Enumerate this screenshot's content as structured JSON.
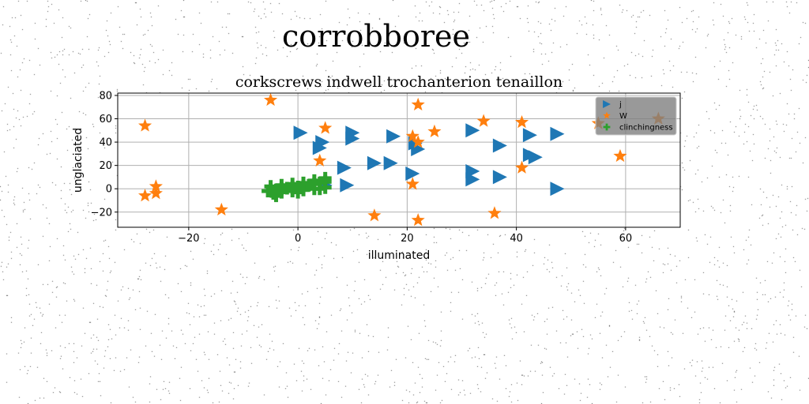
{
  "figure": {
    "suptitle": "corrobboree"
  },
  "chart_data": {
    "type": "scatter",
    "title": "corkscrews indwell trochanterion tenaillon",
    "xlabel": "illuminated",
    "ylabel": "unglaciated",
    "xlim": [
      -33,
      70
    ],
    "ylim": [
      -33,
      82
    ],
    "xticks": [
      -20,
      0,
      20,
      40,
      60
    ],
    "yticks": [
      -20,
      0,
      20,
      40,
      60,
      80
    ],
    "grid": true,
    "legend_position": "top-right",
    "series": [
      {
        "name": "j",
        "marker": "triangle-right",
        "color": "#1f77b4",
        "points": [
          [
            0.5,
            48
          ],
          [
            4.5,
            40
          ],
          [
            4,
            35
          ],
          [
            10,
            48
          ],
          [
            10,
            43
          ],
          [
            17.5,
            45
          ],
          [
            21.5,
            39
          ],
          [
            22,
            34
          ],
          [
            32,
            50
          ],
          [
            37,
            37
          ],
          [
            42.5,
            46
          ],
          [
            47.5,
            47
          ],
          [
            8.5,
            18
          ],
          [
            14,
            22
          ],
          [
            17,
            22
          ],
          [
            21,
            13
          ],
          [
            32,
            15
          ],
          [
            32,
            8
          ],
          [
            37,
            10
          ],
          [
            42.5,
            29
          ],
          [
            43.5,
            27
          ],
          [
            5,
            3
          ],
          [
            9,
            3
          ],
          [
            47.5,
            0
          ]
        ]
      },
      {
        "name": "W",
        "marker": "star",
        "color": "#ff7f0e",
        "points": [
          [
            -5,
            76
          ],
          [
            22,
            72
          ],
          [
            -28,
            54
          ],
          [
            5,
            52
          ],
          [
            25,
            49
          ],
          [
            34,
            58
          ],
          [
            41,
            57
          ],
          [
            55,
            56
          ],
          [
            21,
            45
          ],
          [
            22,
            40
          ],
          [
            66,
            60
          ],
          [
            4,
            24
          ],
          [
            41,
            18
          ],
          [
            59,
            28
          ],
          [
            21,
            4
          ],
          [
            -26,
            2
          ],
          [
            -26,
            -4
          ],
          [
            -28,
            -6
          ],
          [
            -14,
            -18
          ],
          [
            14,
            -23
          ],
          [
            22,
            -27
          ],
          [
            36,
            -21
          ]
        ]
      },
      {
        "name": "clinchingness",
        "marker": "plus",
        "color": "#2ca02c",
        "points": [
          [
            -5.5,
            -2
          ],
          [
            -4,
            -1
          ],
          [
            -3,
            0
          ],
          [
            -2,
            0.5
          ],
          [
            -1,
            1
          ],
          [
            0,
            1.5
          ],
          [
            1,
            2
          ],
          [
            2,
            3
          ],
          [
            3,
            4
          ],
          [
            4,
            5
          ],
          [
            5,
            6
          ],
          [
            -4.5,
            -4
          ],
          [
            -3,
            -3
          ],
          [
            -1,
            -2
          ],
          [
            1,
            -1
          ],
          [
            3,
            0
          ],
          [
            5,
            1
          ],
          [
            -5,
            2
          ],
          [
            -3,
            3
          ],
          [
            -1,
            4
          ],
          [
            1,
            5
          ],
          [
            3,
            7
          ],
          [
            5,
            9
          ],
          [
            -4,
            -6
          ],
          [
            0,
            -3
          ],
          [
            4,
            0
          ]
        ]
      }
    ]
  }
}
